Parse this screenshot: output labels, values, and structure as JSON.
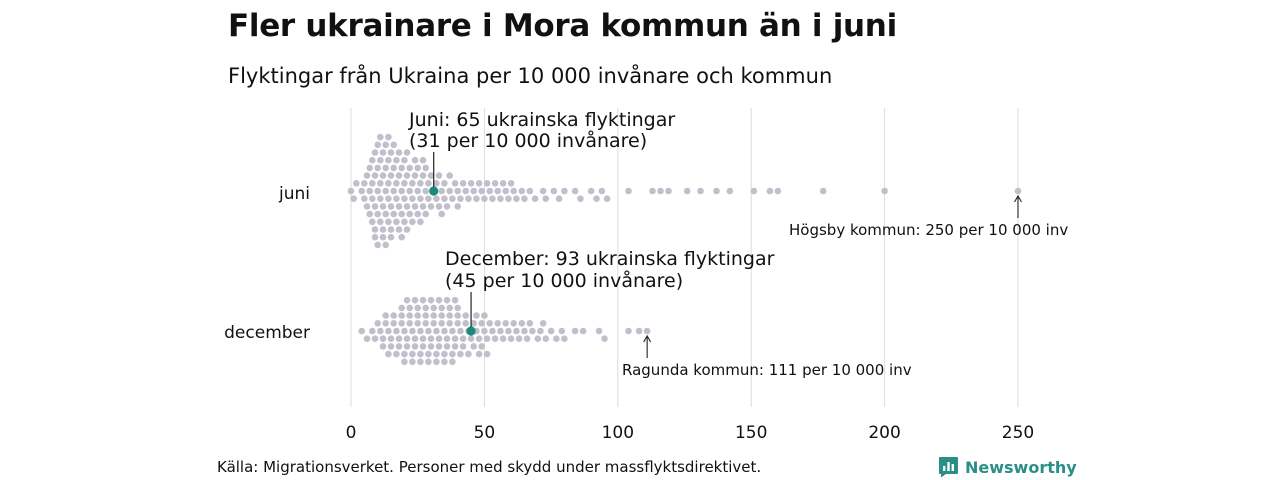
{
  "title": "Fler ukrainare i Mora kommun än i juni",
  "subtitle": "Flyktingar från Ukraina per 10 000 invånare och kommun",
  "source": "Källa: Migrationsverket. Personer med skydd under massflyktsdirektivet.",
  "brand": "Newsworthy",
  "colors": {
    "dot": "#c1bfcc",
    "highlight": "#1a8a7d",
    "grid": "#dcdcdc",
    "text": "#111111"
  },
  "chart_data": {
    "type": "beeswarm",
    "xlim": [
      0,
      250
    ],
    "ticks": [
      0,
      50,
      100,
      150,
      200,
      250
    ],
    "grid": true,
    "series": [
      {
        "name": "juni",
        "highlight": {
          "value": 31,
          "label_line1": "Juni: 65 ukrainska flyktingar",
          "label_line2": "(31 per 10 000 invånare)"
        },
        "max_note": {
          "value": 250,
          "label": "Högsby kommun: 250 per 10 000 inv"
        },
        "values": [
          0,
          1,
          2,
          4,
          5,
          5,
          6,
          6,
          7,
          7,
          7,
          8,
          8,
          8,
          8,
          9,
          9,
          9,
          9,
          9,
          10,
          10,
          10,
          10,
          10,
          11,
          11,
          11,
          11,
          11,
          12,
          12,
          12,
          12,
          12,
          13,
          13,
          13,
          13,
          13,
          14,
          14,
          14,
          14,
          14,
          15,
          15,
          15,
          15,
          15,
          16,
          16,
          16,
          16,
          17,
          17,
          17,
          17,
          18,
          18,
          18,
          18,
          19,
          19,
          19,
          19,
          20,
          20,
          20,
          20,
          21,
          21,
          21,
          21,
          22,
          22,
          22,
          23,
          23,
          23,
          24,
          24,
          24,
          25,
          25,
          25,
          26,
          26,
          26,
          27,
          27,
          27,
          28,
          28,
          28,
          29,
          29,
          30,
          30,
          31,
          32,
          32,
          33,
          33,
          34,
          34,
          35,
          35,
          36,
          37,
          37,
          38,
          39,
          40,
          40,
          41,
          42,
          43,
          44,
          45,
          46,
          47,
          48,
          49,
          50,
          51,
          52,
          53,
          54,
          55,
          56,
          57,
          58,
          59,
          60,
          61,
          62,
          64,
          65,
          67,
          69,
          72,
          73,
          76,
          78,
          80,
          84,
          86,
          90,
          92,
          94,
          96,
          104,
          113,
          116,
          119,
          126,
          131,
          137,
          142,
          151,
          157,
          160,
          177,
          200,
          250
        ]
      },
      {
        "name": "december",
        "highlight": {
          "value": 45,
          "label_line1": "December: 93 ukrainska flyktingar",
          "label_line2": "(45 per 10 000 invånare)"
        },
        "max_note": {
          "value": 111,
          "label": "Ragunda kommun: 111 per 10 000 inv"
        },
        "values": [
          4,
          6,
          8,
          9,
          10,
          11,
          12,
          12,
          13,
          13,
          14,
          14,
          15,
          15,
          16,
          16,
          17,
          17,
          18,
          18,
          19,
          19,
          19,
          20,
          20,
          20,
          21,
          21,
          21,
          22,
          22,
          22,
          23,
          23,
          23,
          24,
          24,
          24,
          25,
          25,
          25,
          26,
          26,
          26,
          27,
          27,
          27,
          28,
          28,
          28,
          29,
          29,
          29,
          30,
          30,
          30,
          31,
          31,
          31,
          32,
          32,
          32,
          33,
          33,
          33,
          34,
          34,
          34,
          35,
          35,
          35,
          36,
          36,
          36,
          37,
          37,
          37,
          38,
          38,
          38,
          39,
          39,
          39,
          40,
          40,
          40,
          41,
          41,
          42,
          42,
          43,
          43,
          44,
          44,
          45,
          46,
          46,
          47,
          47,
          48,
          48,
          49,
          49,
          50,
          50,
          51,
          51,
          52,
          53,
          54,
          55,
          56,
          57,
          58,
          59,
          60,
          61,
          62,
          63,
          64,
          65,
          66,
          67,
          68,
          70,
          71,
          72,
          73,
          75,
          77,
          79,
          80,
          84,
          87,
          93,
          95,
          104,
          108,
          111
        ]
      }
    ]
  }
}
